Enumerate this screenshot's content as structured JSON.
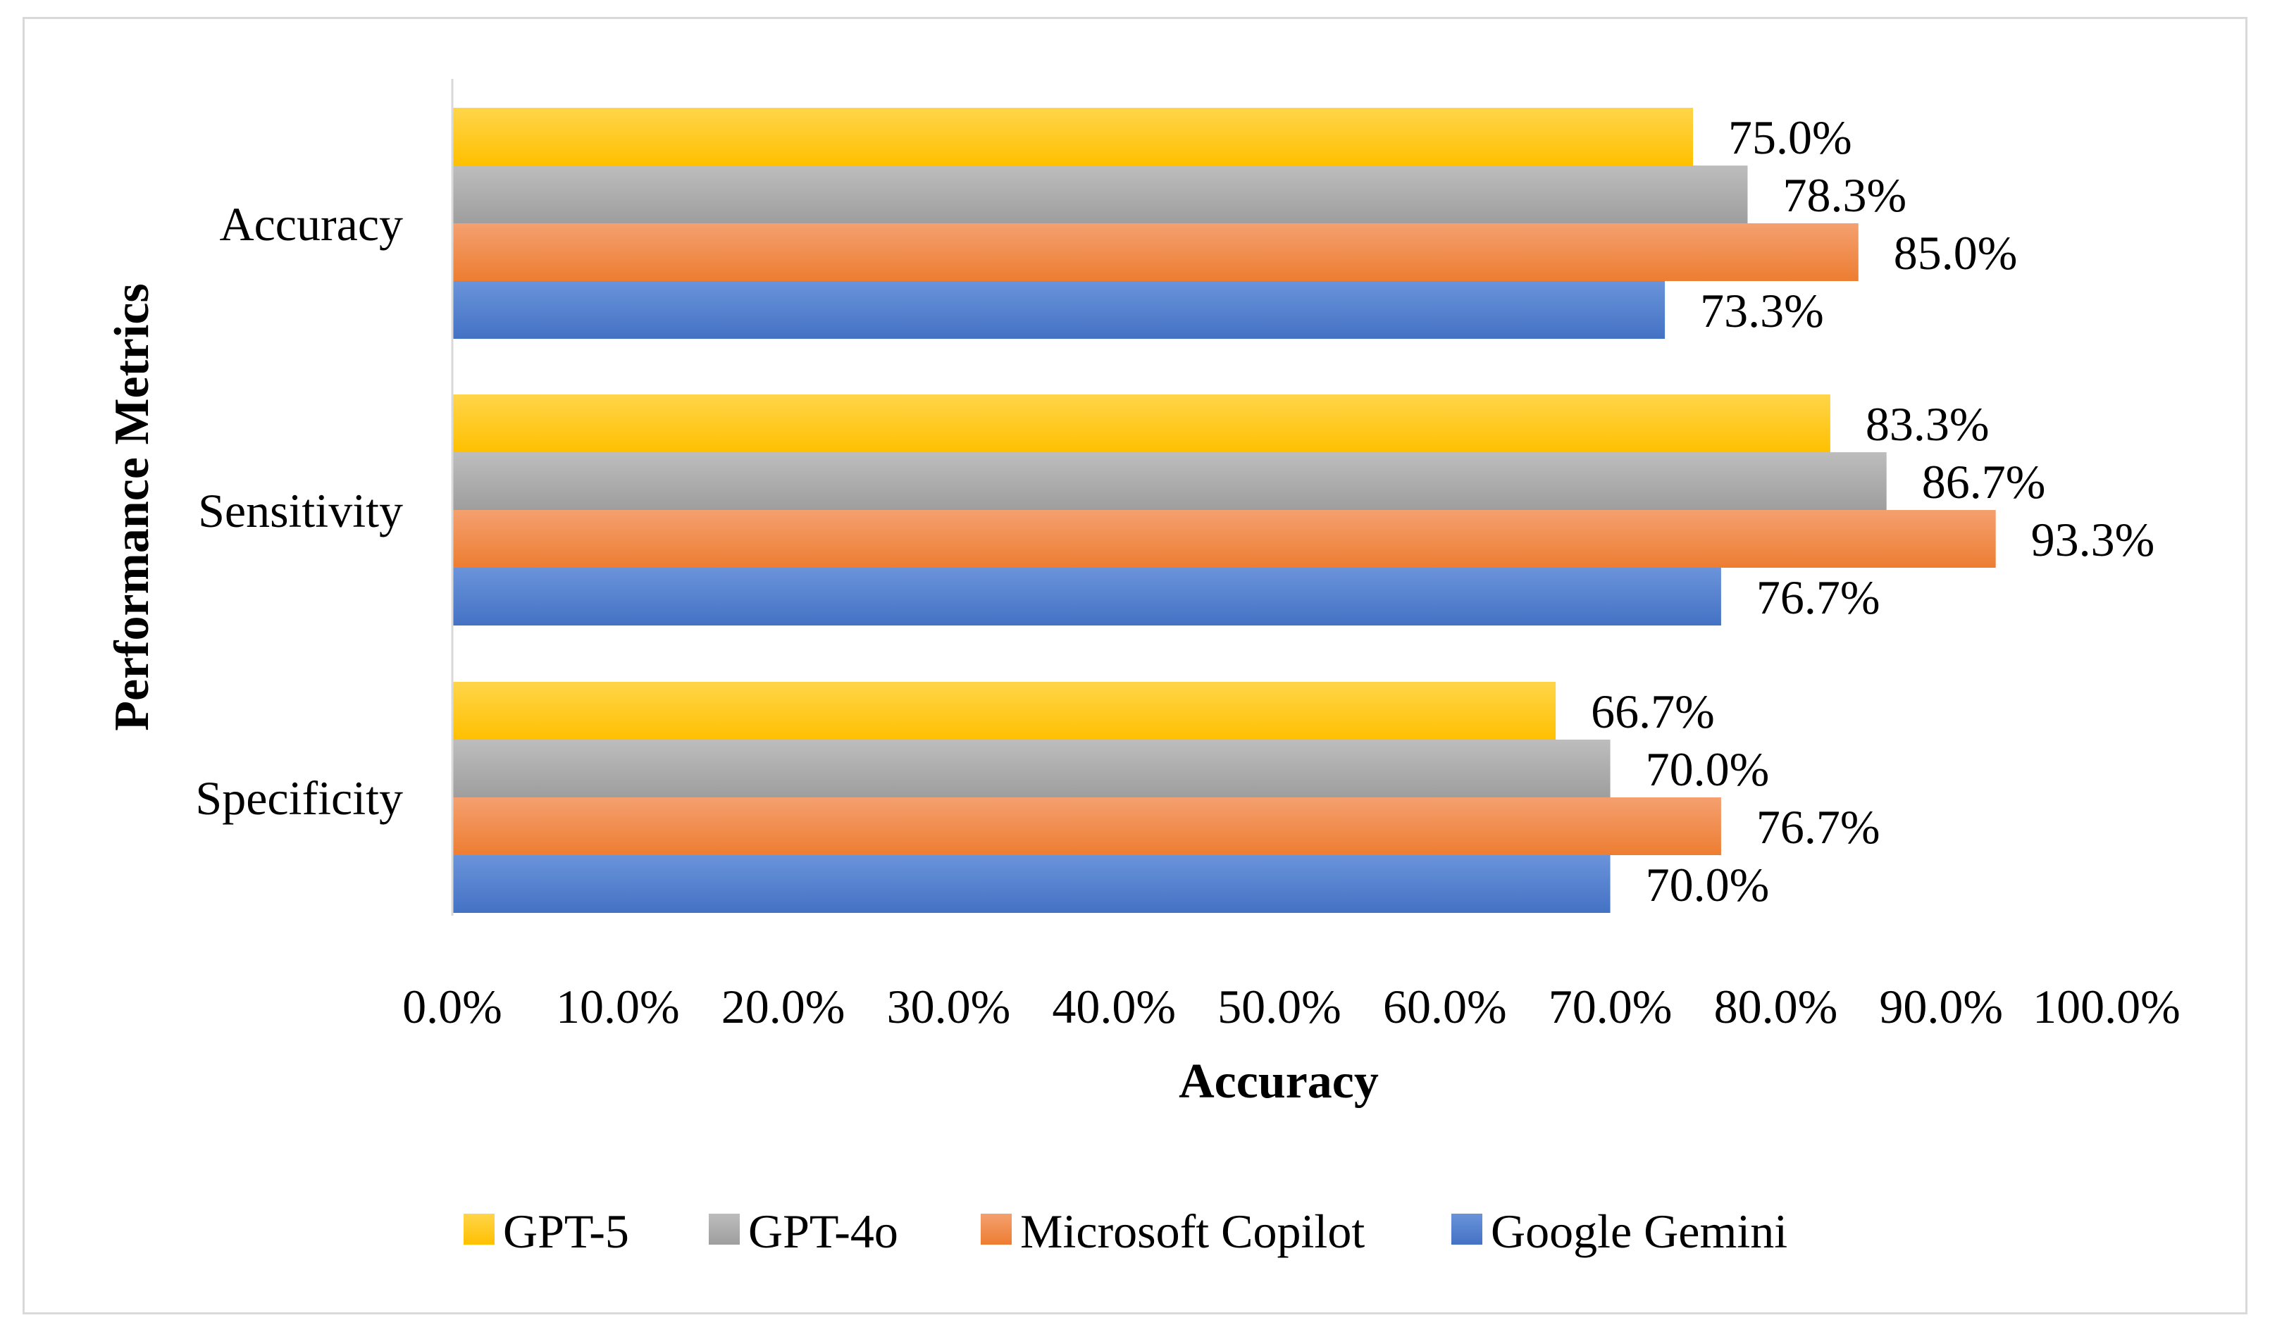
{
  "chart_data": {
    "type": "bar",
    "orientation": "horizontal",
    "title": "",
    "xlabel": "Accuracy",
    "ylabel": "Performance Metrics",
    "xlim": [
      0,
      100
    ],
    "x_ticks": [
      "0.0%",
      "10.0%",
      "20.0%",
      "30.0%",
      "40.0%",
      "50.0%",
      "60.0%",
      "70.0%",
      "80.0%",
      "90.0%",
      "100.0%"
    ],
    "categories": [
      "Accuracy",
      "Sensitivity",
      "Specificity"
    ],
    "series": [
      {
        "name": "GPT-5",
        "color": "#FFC000",
        "color_light": "#FFD54A",
        "values": [
          75.0,
          83.3,
          66.7
        ],
        "labels": [
          "75.0%",
          "83.3%",
          "66.7%"
        ]
      },
      {
        "name": "GPT-4o",
        "color": "#9E9E9E",
        "color_light": "#BDBDBD",
        "values": [
          78.3,
          86.7,
          70.0
        ],
        "labels": [
          "78.3%",
          "86.7%",
          "70.0%"
        ]
      },
      {
        "name": "Microsoft Copilot",
        "color": "#ED7D31",
        "color_light": "#F4A070",
        "values": [
          85.0,
          93.3,
          76.7
        ],
        "labels": [
          "85.0%",
          "93.3%",
          "76.7%"
        ]
      },
      {
        "name": "Google Gemini",
        "color": "#4472C4",
        "color_light": "#6A93DA",
        "values": [
          73.3,
          76.7,
          70.0
        ],
        "labels": [
          "73.3%",
          "76.7%",
          "70.0%"
        ]
      }
    ],
    "legend_position": "bottom",
    "grid": false
  }
}
